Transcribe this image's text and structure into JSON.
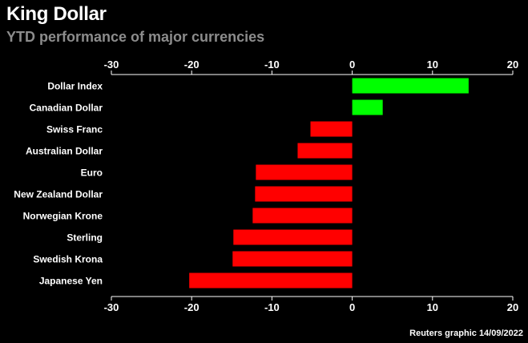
{
  "title": "King Dollar",
  "subtitle": "YTD performance of major currencies",
  "source": "Reuters graphic 14/09/2022",
  "colors": {
    "positive": "#00ff00",
    "negative": "#ff0000",
    "background": "#000000",
    "text": "#ffffff",
    "subtitle": "#8c8c8c"
  },
  "chart_data": {
    "type": "bar",
    "orientation": "horizontal",
    "title": "King Dollar",
    "subtitle": "YTD performance of major currencies",
    "xlabel": "",
    "ylabel": "",
    "xlim": [
      -30,
      20
    ],
    "xticks": [
      -30,
      -20,
      -10,
      0,
      10,
      20
    ],
    "xtick_labels": [
      "-30",
      "-20",
      "-10",
      "0",
      "10",
      "20"
    ],
    "categories": [
      "Dollar Index",
      "Canadian Dollar",
      "Swiss Franc",
      "Australian Dollar",
      "Euro",
      "New Zealand Dollar",
      "Norwegian Krone",
      "Sterling",
      "Swedish Krona",
      "Japanese Yen"
    ],
    "values": [
      14.5,
      3.8,
      -5.2,
      -6.8,
      -12.0,
      -12.1,
      -12.4,
      -14.8,
      -14.9,
      -20.3
    ],
    "grid": false,
    "axes": "top-and-bottom"
  }
}
